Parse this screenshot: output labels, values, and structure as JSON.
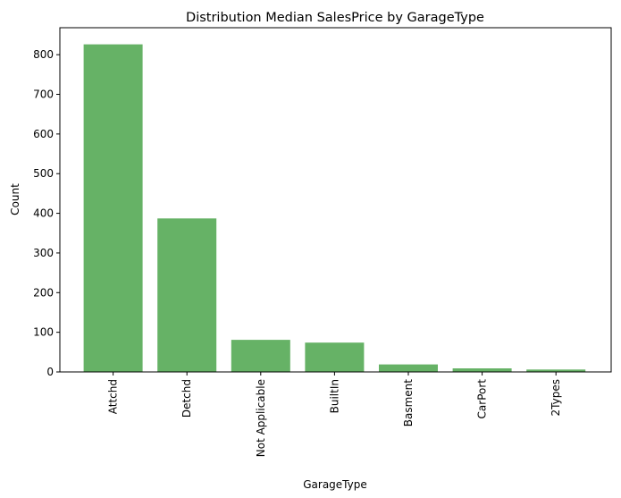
{
  "chart_data": {
    "type": "bar",
    "title": "Distribution Median SalesPrice by GarageType",
    "xlabel": "GarageType",
    "ylabel": "Count",
    "categories": [
      "Attchd",
      "Detchd",
      "Not Applicable",
      "BuiltIn",
      "Basment",
      "CarPort",
      "2Types"
    ],
    "values": [
      826,
      387,
      81,
      74,
      19,
      9,
      6
    ],
    "ylim": [
      0,
      868
    ],
    "yticks": [
      0,
      100,
      200,
      300,
      400,
      500,
      600,
      700,
      800
    ],
    "ytick_labels": [
      "0",
      "100",
      "200",
      "300",
      "400",
      "500",
      "600",
      "700",
      "800"
    ],
    "bar_color": "#66b266",
    "grid": false,
    "legend": "none"
  }
}
